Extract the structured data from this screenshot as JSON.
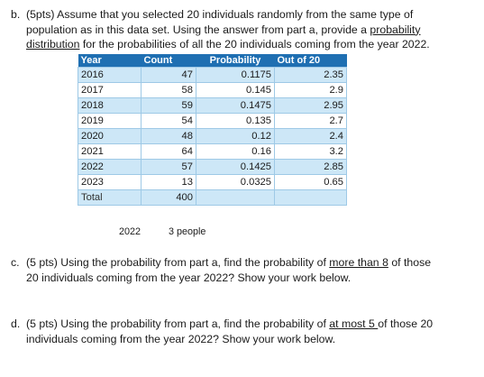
{
  "question_b": {
    "number": "b.",
    "line1": "(5pts) Assume that you selected 20 individuals randomly from the same type of",
    "line2_pre": "population as in this data set.  Using the answer from part a, provide a ",
    "line2_link": "probability",
    "line3_link": "distribution",
    "line3_post": " for the probabilities of all the 20 individuals coming from the year 2022."
  },
  "table": {
    "headers": [
      "Year",
      "Count",
      "Probability",
      "Out of 20"
    ],
    "rows": [
      {
        "year": "2016",
        "count": "47",
        "probability": "0.1175",
        "out_of_20": "2.35"
      },
      {
        "year": "2017",
        "count": "58",
        "probability": "0.145",
        "out_of_20": "2.9"
      },
      {
        "year": "2018",
        "count": "59",
        "probability": "0.1475",
        "out_of_20": "2.95"
      },
      {
        "year": "2019",
        "count": "54",
        "probability": "0.135",
        "out_of_20": "2.7"
      },
      {
        "year": "2020",
        "count": "48",
        "probability": "0.12",
        "out_of_20": "2.4"
      },
      {
        "year": "2021",
        "count": "64",
        "probability": "0.16",
        "out_of_20": "3.2"
      },
      {
        "year": "2022",
        "count": "57",
        "probability": "0.1425",
        "out_of_20": "2.85"
      },
      {
        "year": "2023",
        "count": "13",
        "probability": "0.0325",
        "out_of_20": "0.65"
      }
    ],
    "total_label": "Total",
    "total_count": "400"
  },
  "note": {
    "year": "2022",
    "value": "3 people"
  },
  "question_c": {
    "number": "c.",
    "line1_pre": "(5 pts) Using the probability from part a, find the probability of ",
    "line1_link": "more than 8",
    "line1_post": " of those",
    "line2": "20 individuals coming from the year 2022? Show your work below."
  },
  "question_d": {
    "number": "d.",
    "line1_pre": "(5 pts) Using the probability from part a, find the probability of ",
    "line1_link": "at most 5 ",
    "line1_post": "of those 20",
    "line2": "individuals coming from the year 2022? Show your work below."
  },
  "colors": {
    "header_bg": "#1f6fb2",
    "row_blue": "#cde7f7",
    "border": "#9ec9e6"
  }
}
